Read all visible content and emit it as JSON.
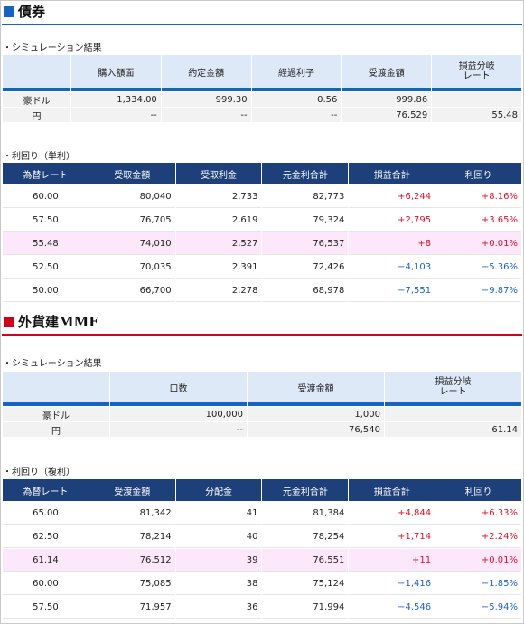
{
  "bonds": {
    "title": "債券",
    "accent": "#1565c0",
    "sim_label": "・シミュレーション結果",
    "sim_headers": [
      "購入額面",
      "約定金額",
      "経過利子",
      "受渡金額",
      "損益分岐\nレート"
    ],
    "sim_rows": [
      {
        "label": "豪ドル",
        "cells": [
          "1,334.00",
          "999.30",
          "0.56",
          "999.86",
          ""
        ]
      },
      {
        "label": "円",
        "cells": [
          "--",
          "--",
          "--",
          "76,529",
          "55.48"
        ]
      }
    ],
    "yield_label": "・利回り（単利）",
    "yield_headers": [
      "為替レート",
      "受取金額",
      "受取利金",
      "元金利合計",
      "損益合計",
      "利回り"
    ],
    "yield_rows": [
      {
        "rate": "60.00",
        "receive": "80,040",
        "interest": "2,733",
        "total": "82,773",
        "pl": "+6,244",
        "yld": "+8.16%",
        "sign": "pos",
        "highlight": false
      },
      {
        "rate": "57.50",
        "receive": "76,705",
        "interest": "2,619",
        "total": "79,324",
        "pl": "+2,795",
        "yld": "+3.65%",
        "sign": "pos",
        "highlight": false
      },
      {
        "rate": "55.48",
        "receive": "74,010",
        "interest": "2,527",
        "total": "76,537",
        "pl": "+8",
        "yld": "+0.01%",
        "sign": "pos",
        "highlight": true
      },
      {
        "rate": "52.50",
        "receive": "70,035",
        "interest": "2,391",
        "total": "72,426",
        "pl": "−4,103",
        "yld": "−5.36%",
        "sign": "neg",
        "highlight": false
      },
      {
        "rate": "50.00",
        "receive": "66,700",
        "interest": "2,278",
        "total": "68,978",
        "pl": "−7,551",
        "yld": "−9.87%",
        "sign": "neg",
        "highlight": false
      }
    ]
  },
  "mmf": {
    "title": "外貨建MMF",
    "accent": "#d0021b",
    "sim_label": "・シミュレーション結果",
    "sim_headers": [
      "口数",
      "受渡金額",
      "損益分岐\nレート"
    ],
    "sim_rows": [
      {
        "label": "豪ドル",
        "cells": [
          "100,000",
          "1,000",
          ""
        ]
      },
      {
        "label": "円",
        "cells": [
          "--",
          "76,540",
          "61.14"
        ]
      }
    ],
    "yield_label": "・利回り（複利）",
    "yield_headers": [
      "為替レート",
      "受渡金額",
      "分配金",
      "元金利合計",
      "損益合計",
      "利回り"
    ],
    "yield_rows": [
      {
        "rate": "65.00",
        "receive": "81,342",
        "interest": "41",
        "total": "81,384",
        "pl": "+4,844",
        "yld": "+6.33%",
        "sign": "pos",
        "highlight": false
      },
      {
        "rate": "62.50",
        "receive": "78,214",
        "interest": "40",
        "total": "78,254",
        "pl": "+1,714",
        "yld": "+2.24%",
        "sign": "pos",
        "highlight": false
      },
      {
        "rate": "61.14",
        "receive": "76,512",
        "interest": "39",
        "total": "76,551",
        "pl": "+11",
        "yld": "+0.01%",
        "sign": "pos",
        "highlight": true
      },
      {
        "rate": "60.00",
        "receive": "75,085",
        "interest": "38",
        "total": "75,124",
        "pl": "−1,416",
        "yld": "−1.85%",
        "sign": "neg",
        "highlight": false
      },
      {
        "rate": "57.50",
        "receive": "71,957",
        "interest": "36",
        "total": "71,994",
        "pl": "−4,546",
        "yld": "−5.94%",
        "sign": "neg",
        "highlight": false
      }
    ]
  }
}
